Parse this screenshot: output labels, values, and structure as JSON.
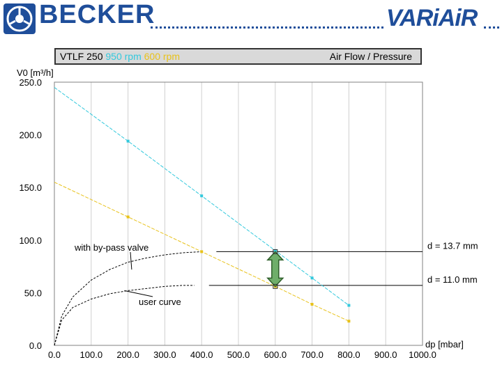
{
  "header": {
    "brand_left": "BECKER",
    "brand_right": "VARiAiR",
    "brand_color": "#1f4e9a"
  },
  "title_bar": {
    "model": "VTLF 250",
    "rpm_high": "950 rpm",
    "rpm_low": "600 rpm",
    "right_title": "Air Flow / Pressure"
  },
  "chart_data": {
    "type": "line",
    "xlabel": "dp [mbar]",
    "ylabel": "V0 [m³/h]",
    "xlim": [
      0,
      1000
    ],
    "ylim": [
      0,
      250
    ],
    "x_ticks": [
      "0.0",
      "100.0",
      "200.0",
      "300.0",
      "400.0",
      "500.0",
      "600.0",
      "700.0",
      "800.0",
      "900.0",
      "1000.0"
    ],
    "y_ticks": [
      "0.0",
      "50.0",
      "100.0",
      "150.0",
      "200.0",
      "250.0"
    ],
    "x_tick_values": [
      0,
      100,
      200,
      300,
      400,
      500,
      600,
      700,
      800,
      900,
      1000
    ],
    "y_tick_values": [
      0,
      50,
      100,
      150,
      200,
      250
    ],
    "grid": "vertical",
    "series": [
      {
        "name": "950 rpm",
        "color": "#33c9dd",
        "x": [
          0,
          200,
          400,
          600,
          700,
          800
        ],
        "y": [
          245,
          194,
          142,
          90,
          64,
          38
        ]
      },
      {
        "name": "600 rpm",
        "color": "#e8c21a",
        "x": [
          0,
          200,
          400,
          600,
          700,
          800
        ],
        "y": [
          155,
          122,
          89,
          56,
          39,
          23
        ]
      }
    ],
    "user_curves": [
      {
        "label": "with by-pass valve",
        "x": [
          0,
          20,
          50,
          100,
          150,
          200,
          250,
          300,
          350,
          400
        ],
        "y": [
          0,
          28,
          46,
          62,
          72,
          79,
          83,
          86,
          88,
          89
        ]
      },
      {
        "label": "user curve",
        "x": [
          0,
          20,
          50,
          100,
          150,
          200,
          250,
          300,
          350,
          380
        ],
        "y": [
          0,
          24,
          36,
          44,
          49,
          52,
          54,
          56,
          57,
          57
        ]
      }
    ],
    "annotations": [
      {
        "text": "d = 13.7 mm",
        "x_from": 440,
        "x_to": 1000,
        "y": 89
      },
      {
        "text": "d = 11.0 mm",
        "x_from": 420,
        "x_to": 1000,
        "y": 57
      }
    ],
    "operating_range": {
      "x": 600,
      "y_top": 89,
      "y_bottom": 56,
      "color": "#6fae6a"
    },
    "callouts": [
      {
        "text": "with by-pass valve",
        "target_x": 210,
        "target_y": 72
      },
      {
        "text": "user curve",
        "target_x": 190,
        "target_y": 52
      }
    ]
  }
}
